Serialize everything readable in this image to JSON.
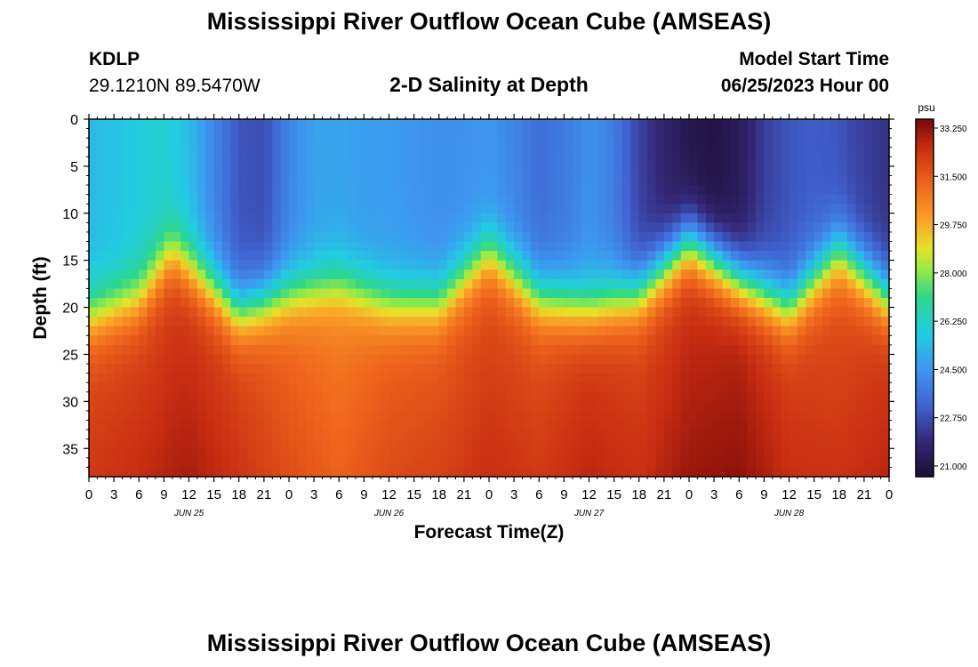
{
  "header": {
    "title": "Mississippi River Outflow Ocean Cube (AMSEAS)",
    "station": "KDLP",
    "coordinates": "29.1210N  89.5470W",
    "subtitle": "2-D Salinity at Depth",
    "model_start_label": "Model Start Time",
    "model_start_value": "06/25/2023 Hour 00"
  },
  "footer": {
    "title": "Mississippi River Outflow Ocean Cube (AMSEAS)"
  },
  "chart_data": {
    "type": "heatmap",
    "title": "2-D Salinity at Depth",
    "xlabel": "Forecast Time(Z)",
    "ylabel": "Depth (ft)",
    "colorbar_unit": "psu",
    "x_hours": [
      0,
      96
    ],
    "ylim": [
      0,
      38
    ],
    "y_ticks": [
      "0",
      "5",
      "10",
      "15",
      "20",
      "25",
      "30",
      "35"
    ],
    "x_tick_labels": [
      "0",
      "3",
      "6",
      "9",
      "12",
      "15",
      "18",
      "21",
      "0",
      "3",
      "6",
      "9",
      "12",
      "15",
      "18",
      "21",
      "0",
      "3",
      "6",
      "9",
      "12",
      "15",
      "18",
      "21",
      "0",
      "3",
      "6",
      "9",
      "12",
      "15",
      "18",
      "21",
      "0"
    ],
    "date_labels": [
      {
        "hour": 12,
        "label": "JUN 25"
      },
      {
        "hour": 36,
        "label": "JUN 26"
      },
      {
        "hour": 60,
        "label": "JUN 27"
      },
      {
        "hour": 84,
        "label": "JUN 28"
      }
    ],
    "colorbar_ticks": [
      "33.250",
      "31.500",
      "29.750",
      "28.000",
      "26.250",
      "24.500",
      "22.750",
      "21.000"
    ],
    "value_range": [
      20.5,
      33.6
    ],
    "halocline_depth_ft": [
      [
        0,
        21
      ],
      [
        6,
        19
      ],
      [
        10,
        14
      ],
      [
        15,
        18
      ],
      [
        18,
        20.5
      ],
      [
        24,
        18.5
      ],
      [
        30,
        17.5
      ],
      [
        36,
        19.5
      ],
      [
        42,
        19.5
      ],
      [
        48,
        14
      ],
      [
        54,
        19
      ],
      [
        60,
        20
      ],
      [
        66,
        18.5
      ],
      [
        72,
        13
      ],
      [
        78,
        17
      ],
      [
        84,
        20
      ],
      [
        90,
        14
      ],
      [
        96,
        19
      ]
    ],
    "surface_salinity": [
      [
        0,
        25.3
      ],
      [
        3,
        25.5
      ],
      [
        6,
        25.8
      ],
      [
        9,
        26.0
      ],
      [
        12,
        25.4
      ],
      [
        15,
        24.0
      ],
      [
        18,
        22.8
      ],
      [
        21,
        22.6
      ],
      [
        24,
        24.0
      ],
      [
        27,
        24.7
      ],
      [
        30,
        24.8
      ],
      [
        33,
        24.6
      ],
      [
        36,
        24.6
      ],
      [
        39,
        24.4
      ],
      [
        42,
        24.2
      ],
      [
        45,
        24.3
      ],
      [
        48,
        24.4
      ],
      [
        51,
        24.0
      ],
      [
        54,
        23.4
      ],
      [
        57,
        23.7
      ],
      [
        60,
        24.3
      ],
      [
        63,
        23.8
      ],
      [
        66,
        22.4
      ],
      [
        69,
        21.6
      ],
      [
        72,
        21.0
      ],
      [
        75,
        20.8
      ],
      [
        78,
        21.2
      ],
      [
        81,
        22.3
      ],
      [
        84,
        22.8
      ],
      [
        87,
        23.0
      ],
      [
        90,
        22.8
      ],
      [
        93,
        22.3
      ],
      [
        96,
        22.0
      ]
    ],
    "deep_salinity": [
      [
        0,
        31.9
      ],
      [
        9,
        32.2
      ],
      [
        12,
        32.4
      ],
      [
        18,
        32.0
      ],
      [
        24,
        31.3
      ],
      [
        30,
        30.8
      ],
      [
        36,
        31.4
      ],
      [
        42,
        31.6
      ],
      [
        48,
        31.9
      ],
      [
        54,
        31.8
      ],
      [
        60,
        32.3
      ],
      [
        66,
        32.0
      ],
      [
        72,
        32.5
      ],
      [
        78,
        32.8
      ],
      [
        84,
        32.1
      ],
      [
        90,
        31.8
      ],
      [
        96,
        32.3
      ]
    ]
  }
}
